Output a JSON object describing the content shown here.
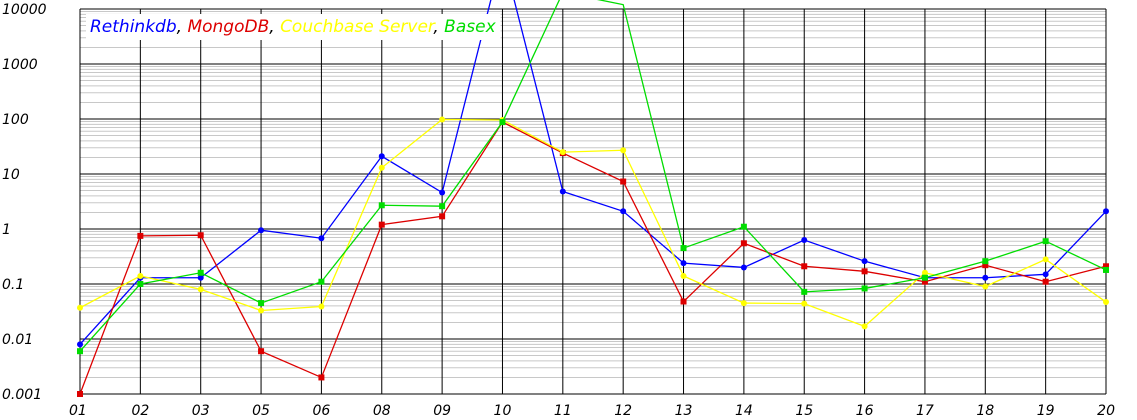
{
  "chart_data": {
    "type": "line",
    "y_scale": "log",
    "ylim": [
      0.001,
      10000
    ],
    "y_ticks": [
      "10000",
      "1000",
      "100",
      "10",
      "1",
      "0.1",
      "0.01",
      "0.001"
    ],
    "categories": [
      "01",
      "02",
      "03",
      "05",
      "06",
      "08",
      "09",
      "10",
      "11",
      "12",
      "13",
      "14",
      "15",
      "16",
      "17",
      "18",
      "19",
      "20"
    ],
    "grid": true,
    "legend_placement": "top-left",
    "legend_separator": ", ",
    "series": [
      {
        "name": "Rethinkdb",
        "color": "#0000ff",
        "marker": "circle",
        "values": [
          0.008,
          0.13,
          0.13,
          0.95,
          0.68,
          21,
          4.6,
          100000,
          4.8,
          2.1,
          0.24,
          0.2,
          0.63,
          0.26,
          0.13,
          0.13,
          0.15,
          2.1
        ]
      },
      {
        "name": "MongoDB",
        "color": "#dd0000",
        "marker": "square",
        "values": [
          0.001,
          0.75,
          0.77,
          0.006,
          0.002,
          1.2,
          1.7,
          88,
          24,
          7.3,
          0.048,
          0.55,
          0.21,
          0.17,
          0.11,
          0.22,
          0.11,
          0.21
        ]
      },
      {
        "name": "Couchbase Server",
        "color": "#ffff00",
        "marker": "circle",
        "values": [
          0.037,
          0.14,
          0.08,
          0.033,
          0.039,
          13,
          98,
          96,
          25,
          27,
          0.14,
          0.045,
          0.044,
          0.017,
          0.16,
          0.09,
          0.28,
          0.047
        ]
      },
      {
        "name": "Basex",
        "color": "#00dd00",
        "marker": "square",
        "values": [
          0.006,
          0.1,
          0.16,
          0.045,
          0.11,
          2.7,
          2.6,
          88,
          20000,
          12000,
          0.45,
          1.1,
          0.072,
          0.083,
          0.13,
          0.26,
          0.6,
          0.18
        ]
      }
    ]
  }
}
